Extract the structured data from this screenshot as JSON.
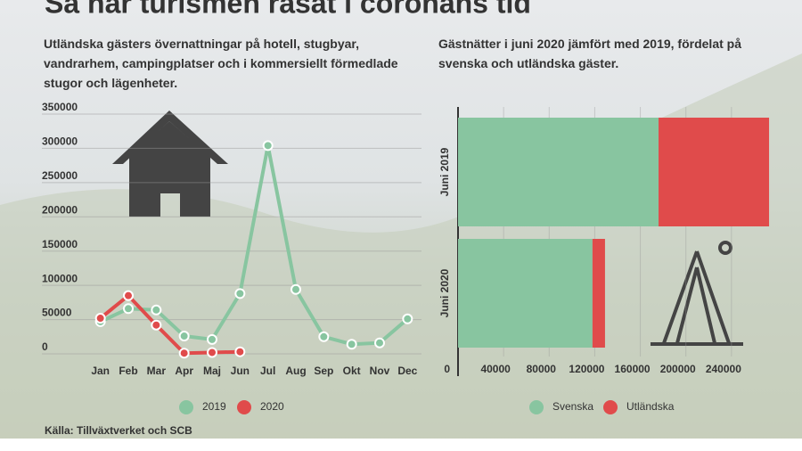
{
  "title": "Så har turismen rasat i coronans tid",
  "source": "Källa: Tillväxtverket och SCB",
  "chart_data": [
    {
      "type": "line",
      "subtitle": "Utländska gästers övernattningar på hotell, stugbyar, vandrarhem, campingplatser och i kommersiellt förmedlade stugor och lägenheter.",
      "categories": [
        "Jan",
        "Feb",
        "Mar",
        "Apr",
        "Maj",
        "Jun",
        "Jul",
        "Aug",
        "Sep",
        "Okt",
        "Nov",
        "Dec"
      ],
      "series": [
        {
          "name": "2019",
          "color": "#88c5a0",
          "values": [
            47000,
            66000,
            64000,
            26000,
            21000,
            88000,
            304000,
            94000,
            25000,
            14000,
            16000,
            51000
          ]
        },
        {
          "name": "2020",
          "color": "#e04b4b",
          "values": [
            52000,
            85000,
            42000,
            1000,
            2000,
            3000,
            null,
            null,
            null,
            null,
            null,
            null
          ]
        }
      ],
      "ylim": [
        0,
        350000
      ],
      "yticks": [
        0,
        50000,
        100000,
        150000,
        200000,
        250000,
        300000,
        350000
      ],
      "grid": true
    },
    {
      "type": "stacked_bar_horizontal",
      "subtitle": "Gästnätter i juni 2020 jämfört med 2019, fördelat på svenska och utländska gäster.",
      "categories": [
        "Juni 2019",
        "Juni 2020"
      ],
      "series": [
        {
          "name": "Svenska",
          "color": "#88c5a0",
          "values": [
            176000,
            118000
          ]
        },
        {
          "name": "Utländska",
          "color": "#e04b4b",
          "values": [
            97000,
            11000
          ]
        }
      ],
      "xlim": [
        0,
        280000
      ],
      "xticks": [
        0,
        40000,
        80000,
        120000,
        160000,
        200000,
        240000
      ],
      "grid": true
    }
  ]
}
